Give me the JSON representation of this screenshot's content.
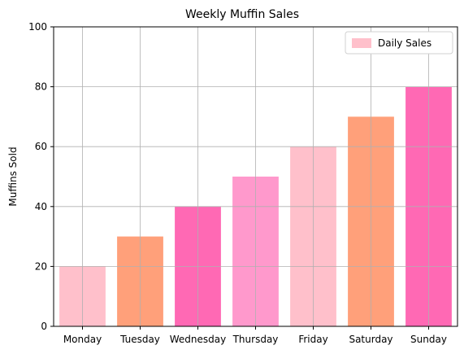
{
  "chart_data": {
    "type": "bar",
    "title": "Weekly Muffin Sales",
    "xlabel": "",
    "ylabel": "Muffins Sold",
    "categories": [
      "Monday",
      "Tuesday",
      "Wednesday",
      "Thursday",
      "Friday",
      "Saturday",
      "Sunday"
    ],
    "series": [
      {
        "name": "Daily Sales",
        "values": [
          20,
          30,
          40,
          50,
          60,
          70,
          80
        ]
      }
    ],
    "bar_colors": [
      "#ffc0cb",
      "#ffa07a",
      "#ff69b4",
      "#ff99cc",
      "#ffc0cb",
      "#ffa07a",
      "#ff69b4"
    ],
    "legend_color": "#ffc0cb",
    "ylim": [
      0,
      100
    ],
    "yticks": [
      0,
      20,
      40,
      60,
      80,
      100
    ],
    "grid": true,
    "legend_position": "top-right"
  }
}
